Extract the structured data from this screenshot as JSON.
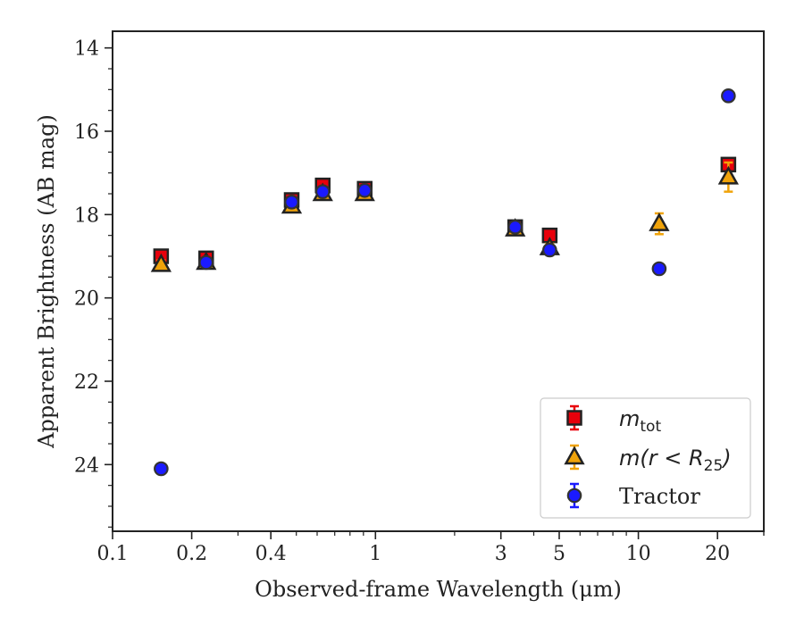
{
  "chart_data": {
    "type": "scatter",
    "xlabel": "Observed-frame Wavelength (μm)",
    "ylabel": "Apparent Brightness (AB mag)",
    "xscale": "log",
    "xlim": [
      0.1,
      30
    ],
    "ylim": [
      25.6,
      13.6
    ],
    "y_inverted": true,
    "grid": false,
    "legend_position": "lower-right",
    "xticks": [
      {
        "value": 0.1,
        "label": "0.1"
      },
      {
        "value": 0.2,
        "label": "0.2"
      },
      {
        "value": 0.4,
        "label": "0.4"
      },
      {
        "value": 1,
        "label": "1"
      },
      {
        "value": 3,
        "label": "3"
      },
      {
        "value": 5,
        "label": "5"
      },
      {
        "value": 10,
        "label": "10"
      },
      {
        "value": 20,
        "label": "20"
      }
    ],
    "yticks": [
      {
        "value": 14,
        "label": "14"
      },
      {
        "value": 16,
        "label": "16"
      },
      {
        "value": 18,
        "label": "18"
      },
      {
        "value": 20,
        "label": "20"
      },
      {
        "value": 22,
        "label": "22"
      },
      {
        "value": 24,
        "label": "24"
      }
    ],
    "series": [
      {
        "name_main": "m",
        "name_sub": "tot",
        "marker": "square",
        "face_color": "#e8000b",
        "error_color": "#e8000b",
        "points": [
          {
            "x": 0.153,
            "y": 19.0,
            "yerr": 0.1
          },
          {
            "x": 0.227,
            "y": 19.05,
            "yerr": 0.1
          },
          {
            "x": 0.48,
            "y": 17.65,
            "yerr": 0.1
          },
          {
            "x": 0.63,
            "y": 17.3,
            "yerr": 0.1
          },
          {
            "x": 0.91,
            "y": 17.38,
            "yerr": 0.1
          },
          {
            "x": 3.4,
            "y": 18.3,
            "yerr": 0.1
          },
          {
            "x": 4.6,
            "y": 18.5,
            "yerr": 0.1
          },
          {
            "x": 22.0,
            "y": 16.8,
            "yerr": 0.1
          }
        ]
      },
      {
        "name_main": "m(r < R",
        "name_sub": "25",
        "name_end": ")",
        "marker": "triangle",
        "face_color": "#f0a30a",
        "error_color": "#f0a30a",
        "points": [
          {
            "x": 0.153,
            "y": 19.2,
            "yerr": 0.1
          },
          {
            "x": 0.227,
            "y": 19.15,
            "yerr": 0.1
          },
          {
            "x": 0.48,
            "y": 17.8,
            "yerr": 0.1
          },
          {
            "x": 0.63,
            "y": 17.5,
            "yerr": 0.1
          },
          {
            "x": 0.91,
            "y": 17.5,
            "yerr": 0.1
          },
          {
            "x": 3.4,
            "y": 18.35,
            "yerr": 0.1
          },
          {
            "x": 4.6,
            "y": 18.8,
            "yerr": 0.1
          },
          {
            "x": 12.0,
            "y": 18.22,
            "yerr": 0.25
          },
          {
            "x": 22.0,
            "y": 17.1,
            "yerr": 0.35
          }
        ]
      },
      {
        "name_main": "Tractor",
        "marker": "circle",
        "face_color": "#1a1aff",
        "error_color": "#1a1aff",
        "points": [
          {
            "x": 0.153,
            "y": 24.1,
            "yerr": 0.05
          },
          {
            "x": 0.227,
            "y": 19.15,
            "yerr": 0.05
          },
          {
            "x": 0.48,
            "y": 17.7,
            "yerr": 0.05
          },
          {
            "x": 0.63,
            "y": 17.45,
            "yerr": 0.05
          },
          {
            "x": 0.91,
            "y": 17.42,
            "yerr": 0.05
          },
          {
            "x": 3.4,
            "y": 18.3,
            "yerr": 0.05
          },
          {
            "x": 4.6,
            "y": 18.85,
            "yerr": 0.05
          },
          {
            "x": 12.0,
            "y": 19.3,
            "yerr": 0.05
          },
          {
            "x": 22.0,
            "y": 15.15,
            "yerr": 0.05
          }
        ]
      }
    ]
  }
}
